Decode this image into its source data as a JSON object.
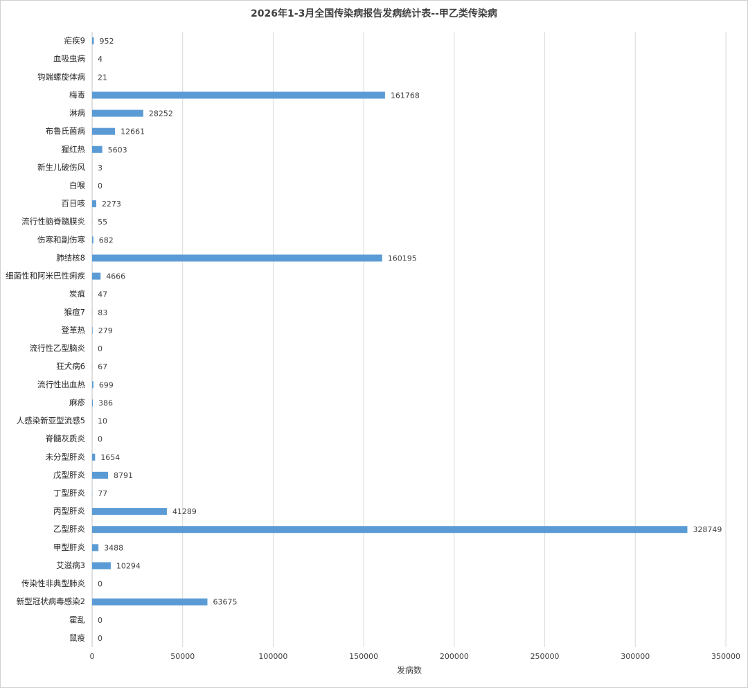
{
  "chart_data": {
    "type": "barh",
    "title": "2026年1-3月全国传染病报告发病统计表--甲乙类传染病",
    "xlabel": "发病数",
    "categories": [
      "疟疾9",
      "血吸虫病",
      "钩端螺旋体病",
      "梅毒",
      "淋病",
      "布鲁氏菌病",
      "猩红热",
      "新生儿破伤风",
      "白喉",
      "百日咳",
      "流行性脑脊髓膜炎",
      "伤寒和副伤寒",
      "肺结核8",
      "细菌性和阿米巴性痢疾",
      "炭疽",
      "猴痘7",
      "登革热",
      "流行性乙型脑炎",
      "狂犬病6",
      "流行性出血热",
      "麻疹",
      "人感染新亚型流感5",
      "脊髓灰质炎",
      "未分型肝炎",
      "戊型肝炎",
      "丁型肝炎",
      "丙型肝炎",
      "乙型肝炎",
      "甲型肝炎",
      "艾滋病3",
      "传染性非典型肺炎",
      "新型冠状病毒感染2",
      "霍乱",
      "鼠疫"
    ],
    "values": [
      952,
      4,
      21,
      161768,
      28252,
      12661,
      5603,
      3,
      0,
      2273,
      55,
      682,
      160195,
      4666,
      47,
      83,
      279,
      0,
      67,
      699,
      386,
      10,
      0,
      1654,
      8791,
      77,
      41289,
      328749,
      3488,
      10294,
      0,
      63675,
      0,
      0
    ],
    "color": "#5b9bd5",
    "xlim": [
      0,
      350000
    ],
    "xticks": [
      0,
      50000,
      100000,
      150000,
      200000,
      250000,
      300000,
      350000
    ],
    "grid": true
  }
}
